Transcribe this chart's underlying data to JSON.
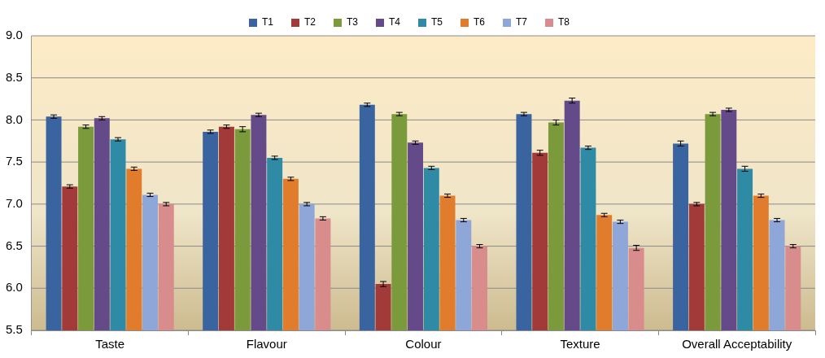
{
  "chart_data": {
    "type": "bar",
    "categories": [
      "Taste",
      "Flavour",
      "Colour",
      "Texture",
      "Overall Acceptability"
    ],
    "series": [
      {
        "name": "T1",
        "color": "#3a64a0",
        "values": [
          8.04,
          7.86,
          8.18,
          8.07,
          7.72
        ],
        "errors": [
          0.02,
          0.02,
          0.02,
          0.02,
          0.03
        ]
      },
      {
        "name": "T2",
        "color": "#a33a3a",
        "values": [
          7.21,
          7.92,
          6.05,
          7.61,
          7.0
        ],
        "errors": [
          0.02,
          0.02,
          0.03,
          0.03,
          0.02
        ]
      },
      {
        "name": "T3",
        "color": "#7a9a3c",
        "values": [
          7.92,
          7.89,
          8.07,
          7.97,
          8.07
        ],
        "errors": [
          0.02,
          0.03,
          0.02,
          0.03,
          0.02
        ]
      },
      {
        "name": "T4",
        "color": "#654a8a",
        "values": [
          8.02,
          8.06,
          7.73,
          8.23,
          8.12
        ],
        "errors": [
          0.02,
          0.02,
          0.02,
          0.03,
          0.02
        ]
      },
      {
        "name": "T5",
        "color": "#2e8aa5",
        "values": [
          7.77,
          7.55,
          7.43,
          7.67,
          7.42
        ],
        "errors": [
          0.02,
          0.02,
          0.02,
          0.02,
          0.03
        ]
      },
      {
        "name": "T6",
        "color": "#e07c2c",
        "values": [
          7.42,
          7.3,
          7.1,
          6.87,
          7.1
        ],
        "errors": [
          0.02,
          0.02,
          0.02,
          0.02,
          0.02
        ]
      },
      {
        "name": "T7",
        "color": "#8ea6d8",
        "values": [
          7.11,
          7.0,
          6.81,
          6.79,
          6.81
        ],
        "errors": [
          0.02,
          0.02,
          0.02,
          0.02,
          0.02
        ]
      },
      {
        "name": "T8",
        "color": "#d98c8c",
        "values": [
          7.0,
          6.83,
          6.5,
          6.48,
          6.5
        ],
        "errors": [
          0.02,
          0.02,
          0.02,
          0.03,
          0.02
        ]
      }
    ],
    "ylim": [
      5.5,
      9.0
    ],
    "yticks": [
      {
        "value": 5.5,
        "label": "5.5"
      },
      {
        "value": 6,
        "label": "6.0"
      },
      {
        "value": 6.5,
        "label": "6.5"
      },
      {
        "value": 7,
        "label": "7.0"
      },
      {
        "value": 7.5,
        "label": "7.5"
      },
      {
        "value": 8,
        "label": "8.0"
      },
      {
        "value": 8.5,
        "label": "8.5"
      },
      {
        "value": 9,
        "label": "9.0"
      }
    ],
    "grid": "y",
    "legend": "top"
  }
}
